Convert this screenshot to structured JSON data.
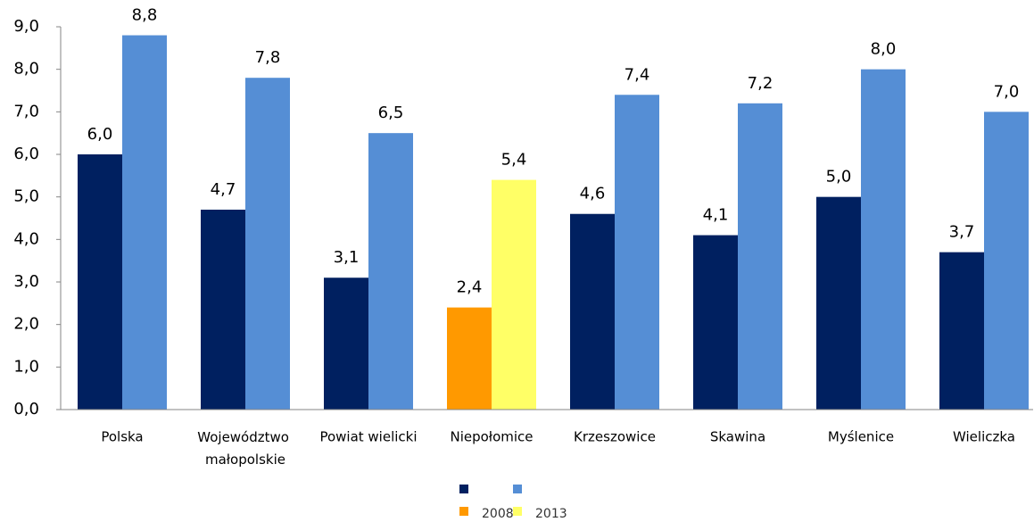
{
  "chart_data": {
    "type": "bar",
    "categories": [
      "Polska",
      "Województwo małopolskie",
      "Powiat wielicki",
      "Niepołomice",
      "Krzeszowice",
      "Skawina",
      "Myślenice",
      "Wieliczka"
    ],
    "series": [
      {
        "name": "2008",
        "colors": [
          "#002060",
          "#002060",
          "#002060",
          "#ff9900",
          "#002060",
          "#002060",
          "#002060",
          "#002060"
        ],
        "values": [
          6.0,
          4.7,
          3.1,
          2.4,
          4.6,
          4.1,
          5.0,
          3.7
        ],
        "value_labels": [
          "6,0",
          "4,7",
          "3,1",
          "2,4",
          "4,6",
          "4,1",
          "5,0",
          "3,7"
        ]
      },
      {
        "name": "2013",
        "colors": [
          "#558ed5",
          "#558ed5",
          "#558ed5",
          "#ffff66",
          "#558ed5",
          "#558ed5",
          "#558ed5",
          "#558ed5"
        ],
        "values": [
          8.8,
          7.8,
          6.5,
          5.4,
          7.4,
          7.2,
          8.0,
          7.0
        ],
        "value_labels": [
          "8,8",
          "7,8",
          "6,5",
          "5,4",
          "7,4",
          "7,2",
          "8,0",
          "7,0"
        ]
      }
    ],
    "ylim": [
      0,
      9
    ],
    "yticks": [
      {
        "value": 0,
        "label": "0,0"
      },
      {
        "value": 1,
        "label": "1,0"
      },
      {
        "value": 2,
        "label": "2,0"
      },
      {
        "value": 3,
        "label": "3,0"
      },
      {
        "value": 4,
        "label": "4,0"
      },
      {
        "value": 5,
        "label": "5,0"
      },
      {
        "value": 6,
        "label": "6,0"
      },
      {
        "value": 7,
        "label": "7,0"
      },
      {
        "value": 8,
        "label": "8,0"
      },
      {
        "value": 9,
        "label": "9,0"
      }
    ],
    "grid": false,
    "legend": "bottom"
  }
}
